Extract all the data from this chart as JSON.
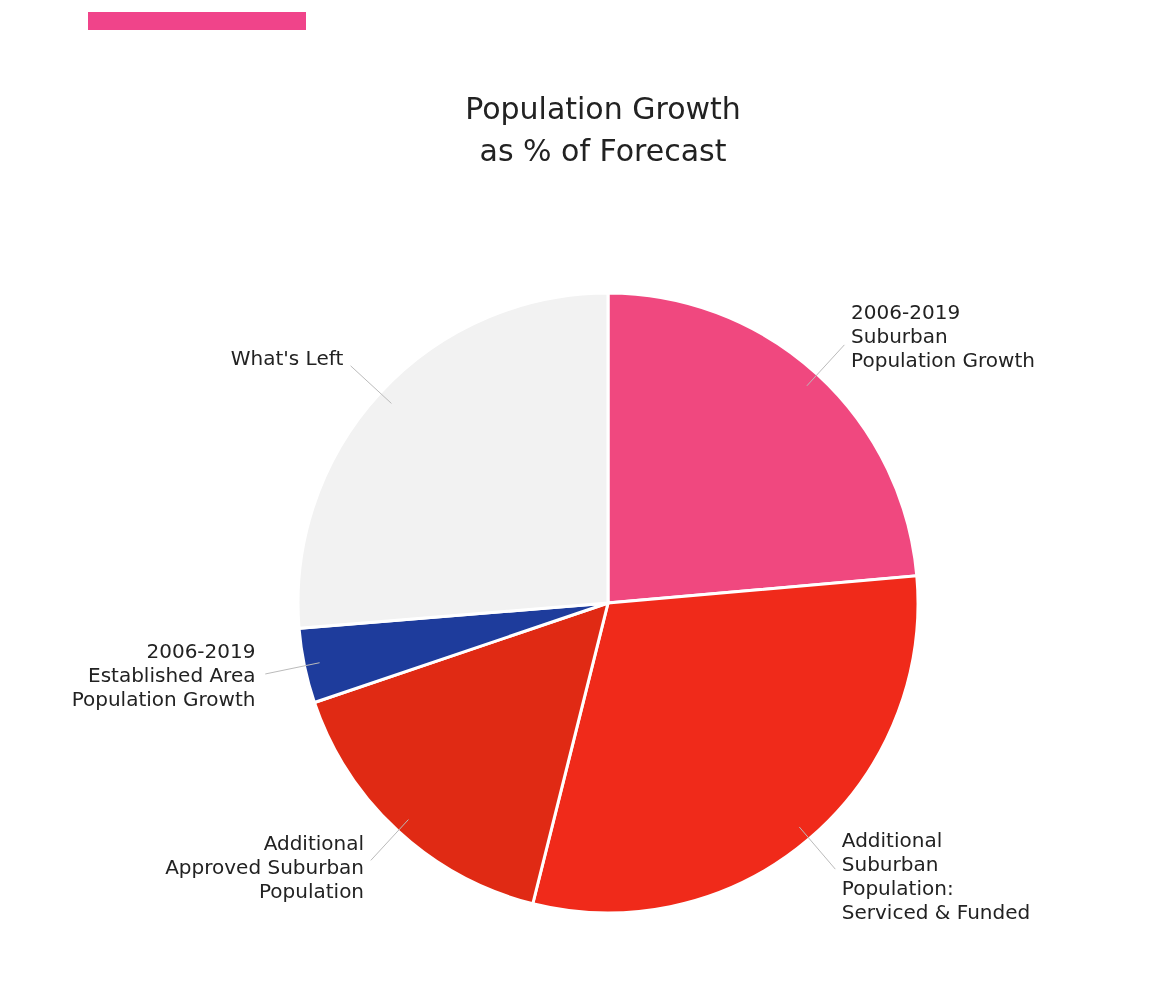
{
  "chart_data": {
    "type": "pie",
    "title": "Population Growth\nas % of Forecast",
    "categories": [
      "2006-2019 Suburban Population Growth",
      "Additional Suburban Population: Serviced & Funded",
      "Additional Approved Suburban Population",
      "2006-2019 Established Area Population Growth",
      "What's Left"
    ],
    "values": [
      23.6,
      30.3,
      15.9,
      3.9,
      26.3
    ],
    "colors": [
      "#f0487f",
      "#f02a1a",
      "#e02a14",
      "#1e3c9c",
      "#f2f2f2"
    ]
  }
}
